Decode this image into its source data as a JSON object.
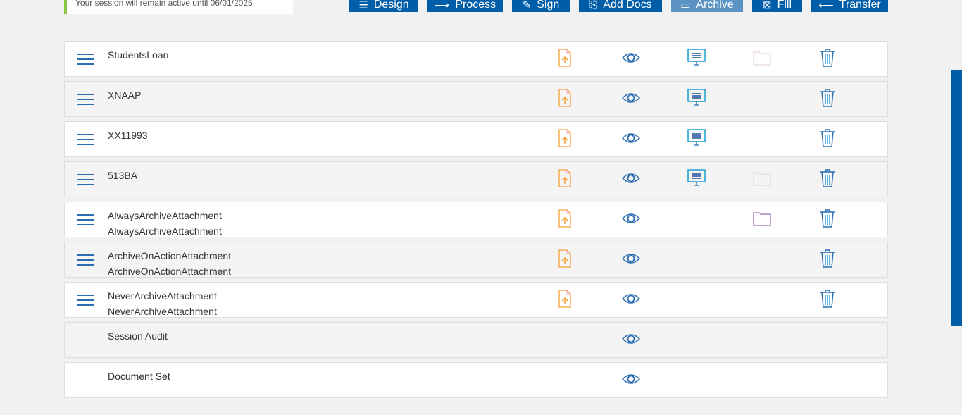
{
  "session": {
    "message": "Your session will remain active until 06/01/2025"
  },
  "toolbar": [
    {
      "label": "Design",
      "icon": "list-icon",
      "disabled": false
    },
    {
      "label": "Process",
      "icon": "arrow-right-icon",
      "disabled": false
    },
    {
      "label": "Sign",
      "icon": "pen-icon",
      "disabled": false
    },
    {
      "label": "Add Docs",
      "icon": "paperclip-icon",
      "disabled": false
    },
    {
      "label": "Archive",
      "icon": "box-icon",
      "disabled": true
    },
    {
      "label": "Fill",
      "icon": "form-icon",
      "disabled": false
    },
    {
      "label": "Transfer",
      "icon": "arrow-left-icon",
      "disabled": false
    }
  ],
  "rows": [
    {
      "name": "StudentsLoan",
      "sub": "",
      "menu": true,
      "upload": true,
      "view": true,
      "present": true,
      "folder": "faded",
      "trash": true
    },
    {
      "name": "XNAAP",
      "sub": "",
      "menu": true,
      "upload": true,
      "view": true,
      "present": true,
      "folder": "none",
      "trash": true
    },
    {
      "name": "XX11993",
      "sub": "",
      "menu": true,
      "upload": true,
      "view": true,
      "present": true,
      "folder": "none",
      "trash": true
    },
    {
      "name": "513BA",
      "sub": "",
      "menu": true,
      "upload": true,
      "view": true,
      "present": true,
      "folder": "faded",
      "trash": true
    },
    {
      "name": "AlwaysArchiveAttachment",
      "sub": "AlwaysArchiveAttachment",
      "menu": true,
      "upload": true,
      "view": true,
      "present": false,
      "folder": "active",
      "trash": true
    },
    {
      "name": "ArchiveOnActionAttachment",
      "sub": "ArchiveOnActionAttachment",
      "menu": true,
      "upload": true,
      "view": true,
      "present": false,
      "folder": "none",
      "trash": true
    },
    {
      "name": "NeverArchiveAttachment",
      "sub": "NeverArchiveAttachment",
      "menu": true,
      "upload": true,
      "view": true,
      "present": false,
      "folder": "none",
      "trash": true
    },
    {
      "name": "Session Audit",
      "sub": "",
      "menu": false,
      "upload": false,
      "view": true,
      "present": false,
      "folder": "none",
      "trash": false
    },
    {
      "name": "Document Set",
      "sub": "",
      "menu": false,
      "upload": false,
      "view": true,
      "present": false,
      "folder": "none",
      "trash": false
    }
  ],
  "colors": {
    "primary": "#005ea8",
    "disabled": "#5b93c4",
    "accent": "#8dc63f",
    "upload": "#f7a035"
  }
}
